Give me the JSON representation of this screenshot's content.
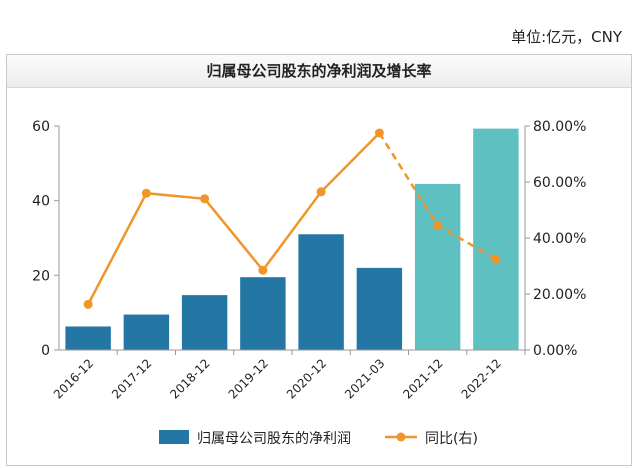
{
  "unit_label": "单位:亿元，CNY",
  "chart_data": {
    "type": "bar",
    "title": "归属母公司股东的净利润及增长率",
    "categories": [
      "2016-12",
      "2017-12",
      "2018-12",
      "2019-12",
      "2020-12",
      "2021-03",
      "2021-12",
      "2022-12"
    ],
    "y_left": {
      "ylim": [
        0,
        60
      ],
      "ticks": [
        "0",
        "20",
        "40",
        "60"
      ]
    },
    "y_right": {
      "ylim": [
        0,
        80
      ],
      "ticks": [
        "0.00%",
        "20.00%",
        "40.00%",
        "60.00%",
        "80.00%"
      ]
    },
    "series": [
      {
        "name": "归属母公司股东的净利润",
        "kind": "bar",
        "axis": "left",
        "values": [
          6.3,
          9.5,
          14.7,
          19.5,
          31.0,
          22.0,
          44.5,
          59.3
        ],
        "color": "#2477a5",
        "forecast_color": "#5fc0c2",
        "forecast_from_index": 6
      },
      {
        "name": "同比(右)",
        "kind": "line",
        "axis": "right",
        "values": [
          16.3,
          56.0,
          54.0,
          28.5,
          56.5,
          77.5,
          44.5,
          32.5
        ],
        "color": "#f0952a",
        "dashed_from_index": 5
      }
    ],
    "legend_position": "bottom"
  }
}
